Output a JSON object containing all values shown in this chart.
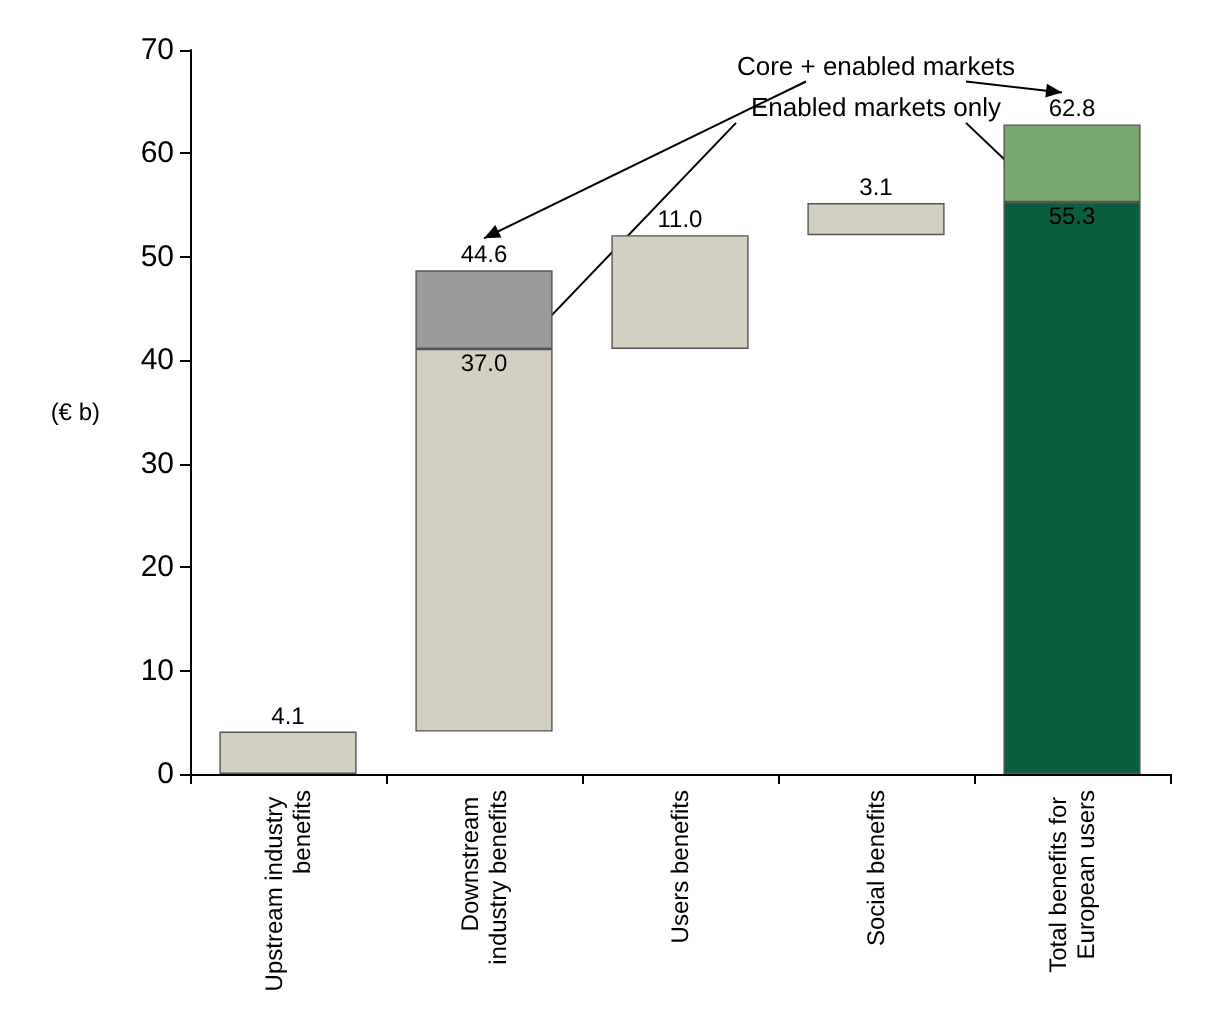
{
  "chart_data": {
    "type": "bar",
    "stacked": true,
    "categories": [
      "Upstream industry benefits",
      "Downstream industry benefits",
      "Users benefits",
      "Social benefits",
      "Total benefits for European users"
    ],
    "series": [
      {
        "base": [
          0,
          4.1,
          41.1,
          52.1,
          0
        ],
        "values": [
          4.1,
          37.0,
          11.0,
          3.1,
          55.3
        ],
        "colors": [
          "#d3d0c2",
          "#d3d0c2",
          "#d3d0c2",
          "#d3d0c2",
          "#0b5e3b"
        ],
        "value_labels": [
          "4.1",
          "37.0",
          "11.0",
          "3.1",
          "55.3"
        ]
      },
      {
        "values": [
          null,
          7.6,
          null,
          null,
          7.5
        ],
        "colors": [
          null,
          "#9b9b9b",
          null,
          null,
          "#78a86e"
        ]
      }
    ],
    "totals": [
      null,
      "44.6",
      null,
      null,
      "62.8"
    ],
    "ylabel": "(€ b)",
    "ylim": [
      0,
      70
    ],
    "yticks": [
      0,
      10,
      20,
      30,
      40,
      50,
      60,
      70
    ],
    "grid": false,
    "annotations": [
      "Core + enabled markets",
      "Enabled markets only"
    ]
  }
}
